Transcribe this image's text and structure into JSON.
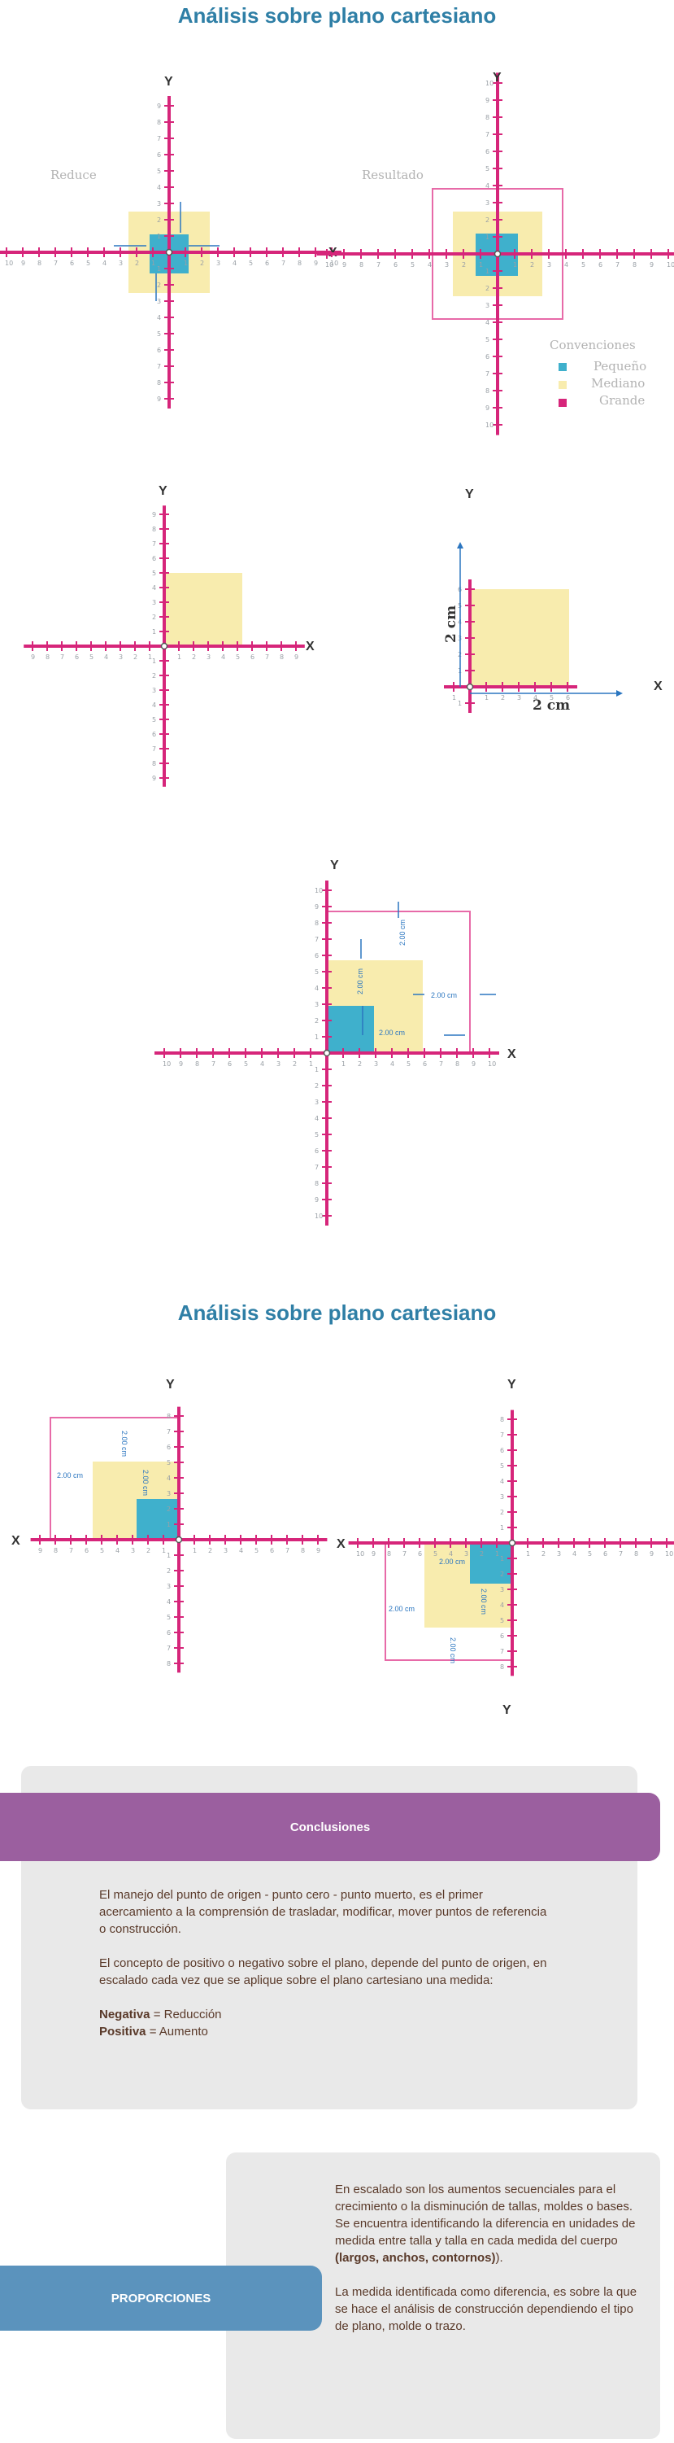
{
  "titles": {
    "top": "Análisis sobre plano cartesiano",
    "middle": "Análisis sobre plano cartesiano"
  },
  "labels": {
    "x": "X",
    "y": "Y"
  },
  "diagram1": {
    "reduce_label": "Reduce",
    "result_label": "Resultado",
    "legend": {
      "title": "Convenciones",
      "small": "Pequeño",
      "medium": "Mediano",
      "large": "Grande"
    }
  },
  "diagram2": {
    "cm_x": "2 cm",
    "cm_y": "2 cm"
  },
  "measure": "2.00 cm",
  "conclusions": {
    "title": "Conclusiones",
    "p1": "El manejo del punto de origen - punto cero - punto muerto, es el primer acercamiento a la comprensión de trasladar, modificar, mover puntos de referencia o construcción.",
    "p2": "El concepto de positivo o negativo sobre el plano, depende del punto de origen, en escalado cada vez que se aplique sobre el plano cartesiano una medida:",
    "neg_label": "Negativa",
    "neg_value": " = Reducción",
    "pos_label": "Positiva",
    "pos_value": " = Aumento"
  },
  "proportions": {
    "title": "PROPORCIONES",
    "p1": "En escalado son los aumentos secuenciales para el crecimiento o la disminución de tallas, moldes o bases.",
    "p2a": "Se encuentra identificando la diferencia en unidades de medida entre talla y talla en cada medida del cuerpo ",
    "p2b": "(largos, anchos, contornos)",
    "p2c": ").",
    "p3": "La medida identificada como diferencia, es sobre la que se hace el análisis de construcción dependiendo el tipo de plano, molde o trazo."
  },
  "colors": {
    "axis": "#d6257a",
    "small": "#3fb0cc",
    "medium": "#f8ecae",
    "large": "#e76aa8",
    "conclusions_banner": "#9b5f9f",
    "proportions_banner": "#5b93bd"
  }
}
